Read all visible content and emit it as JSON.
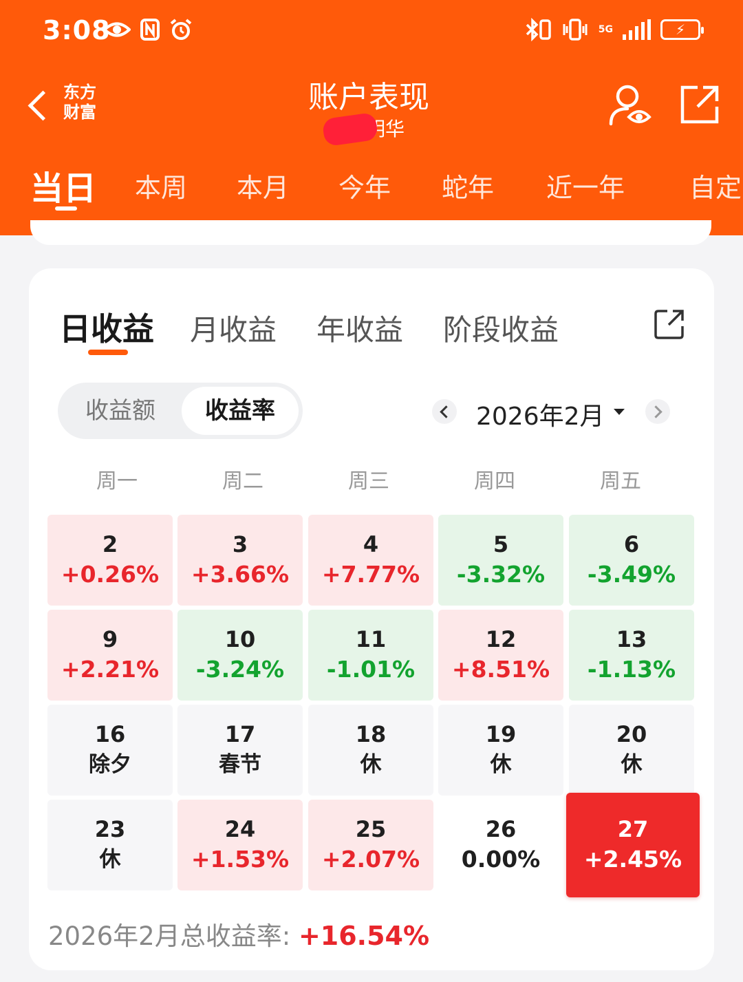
{
  "status_bar": {
    "time": "3:08",
    "network": "5G"
  },
  "nav": {
    "logo_line1": "东方",
    "logo_line2": "财富",
    "title": "账户表现",
    "subtitle_visible": "明华"
  },
  "period_tabs": [
    {
      "label": "当日",
      "active": true
    },
    {
      "label": "本周"
    },
    {
      "label": "本月"
    },
    {
      "label": "今年"
    },
    {
      "label": "蛇年"
    },
    {
      "label": "近一年"
    },
    {
      "label": "自定"
    }
  ],
  "income_tabs": [
    {
      "label": "日收益",
      "active": true
    },
    {
      "label": "月收益"
    },
    {
      "label": "年收益"
    },
    {
      "label": "阶段收益"
    }
  ],
  "toggle": {
    "left": "收益额",
    "right": "收益率",
    "selected": "收益率"
  },
  "month_picker": {
    "label": "2026年2月"
  },
  "weekdays": [
    "周一",
    "周二",
    "周三",
    "周四",
    "周五"
  ],
  "calendar": [
    {
      "day": "2",
      "value": "+0.26%",
      "state": "up"
    },
    {
      "day": "3",
      "value": "+3.66%",
      "state": "up"
    },
    {
      "day": "4",
      "value": "+7.77%",
      "state": "up"
    },
    {
      "day": "5",
      "value": "-3.32%",
      "state": "down"
    },
    {
      "day": "6",
      "value": "-3.49%",
      "state": "down"
    },
    {
      "day": "9",
      "value": "+2.21%",
      "state": "up"
    },
    {
      "day": "10",
      "value": "-3.24%",
      "state": "down"
    },
    {
      "day": "11",
      "value": "-1.01%",
      "state": "down"
    },
    {
      "day": "12",
      "value": "+8.51%",
      "state": "up"
    },
    {
      "day": "13",
      "value": "-1.13%",
      "state": "down"
    },
    {
      "day": "16",
      "value": "除夕",
      "state": "rest"
    },
    {
      "day": "17",
      "value": "春节",
      "state": "rest"
    },
    {
      "day": "18",
      "value": "休",
      "state": "rest"
    },
    {
      "day": "19",
      "value": "休",
      "state": "rest"
    },
    {
      "day": "20",
      "value": "休",
      "state": "rest"
    },
    {
      "day": "23",
      "value": "休",
      "state": "rest"
    },
    {
      "day": "24",
      "value": "+1.53%",
      "state": "up"
    },
    {
      "day": "25",
      "value": "+2.07%",
      "state": "up"
    },
    {
      "day": "26",
      "value": "0.00%",
      "state": "flat"
    },
    {
      "day": "27",
      "value": "+2.45%",
      "state": "selected"
    }
  ],
  "total": {
    "label": "2026年2月总收益率:",
    "value": "+16.54%"
  },
  "colors": {
    "brand": "#ff5a0a",
    "up": "#e8262c",
    "down": "#13a32f",
    "selected": "#ee2a2a"
  },
  "icons": [
    "eye-icon",
    "nfc-icon",
    "alarm-icon",
    "bluetooth-icon",
    "vibrate-icon",
    "signal-icon",
    "battery-charging-icon",
    "back-arrow-icon",
    "user-eye-icon",
    "share-icon",
    "export-icon",
    "chevron-left-icon",
    "chevron-right-icon",
    "caret-down-icon"
  ]
}
